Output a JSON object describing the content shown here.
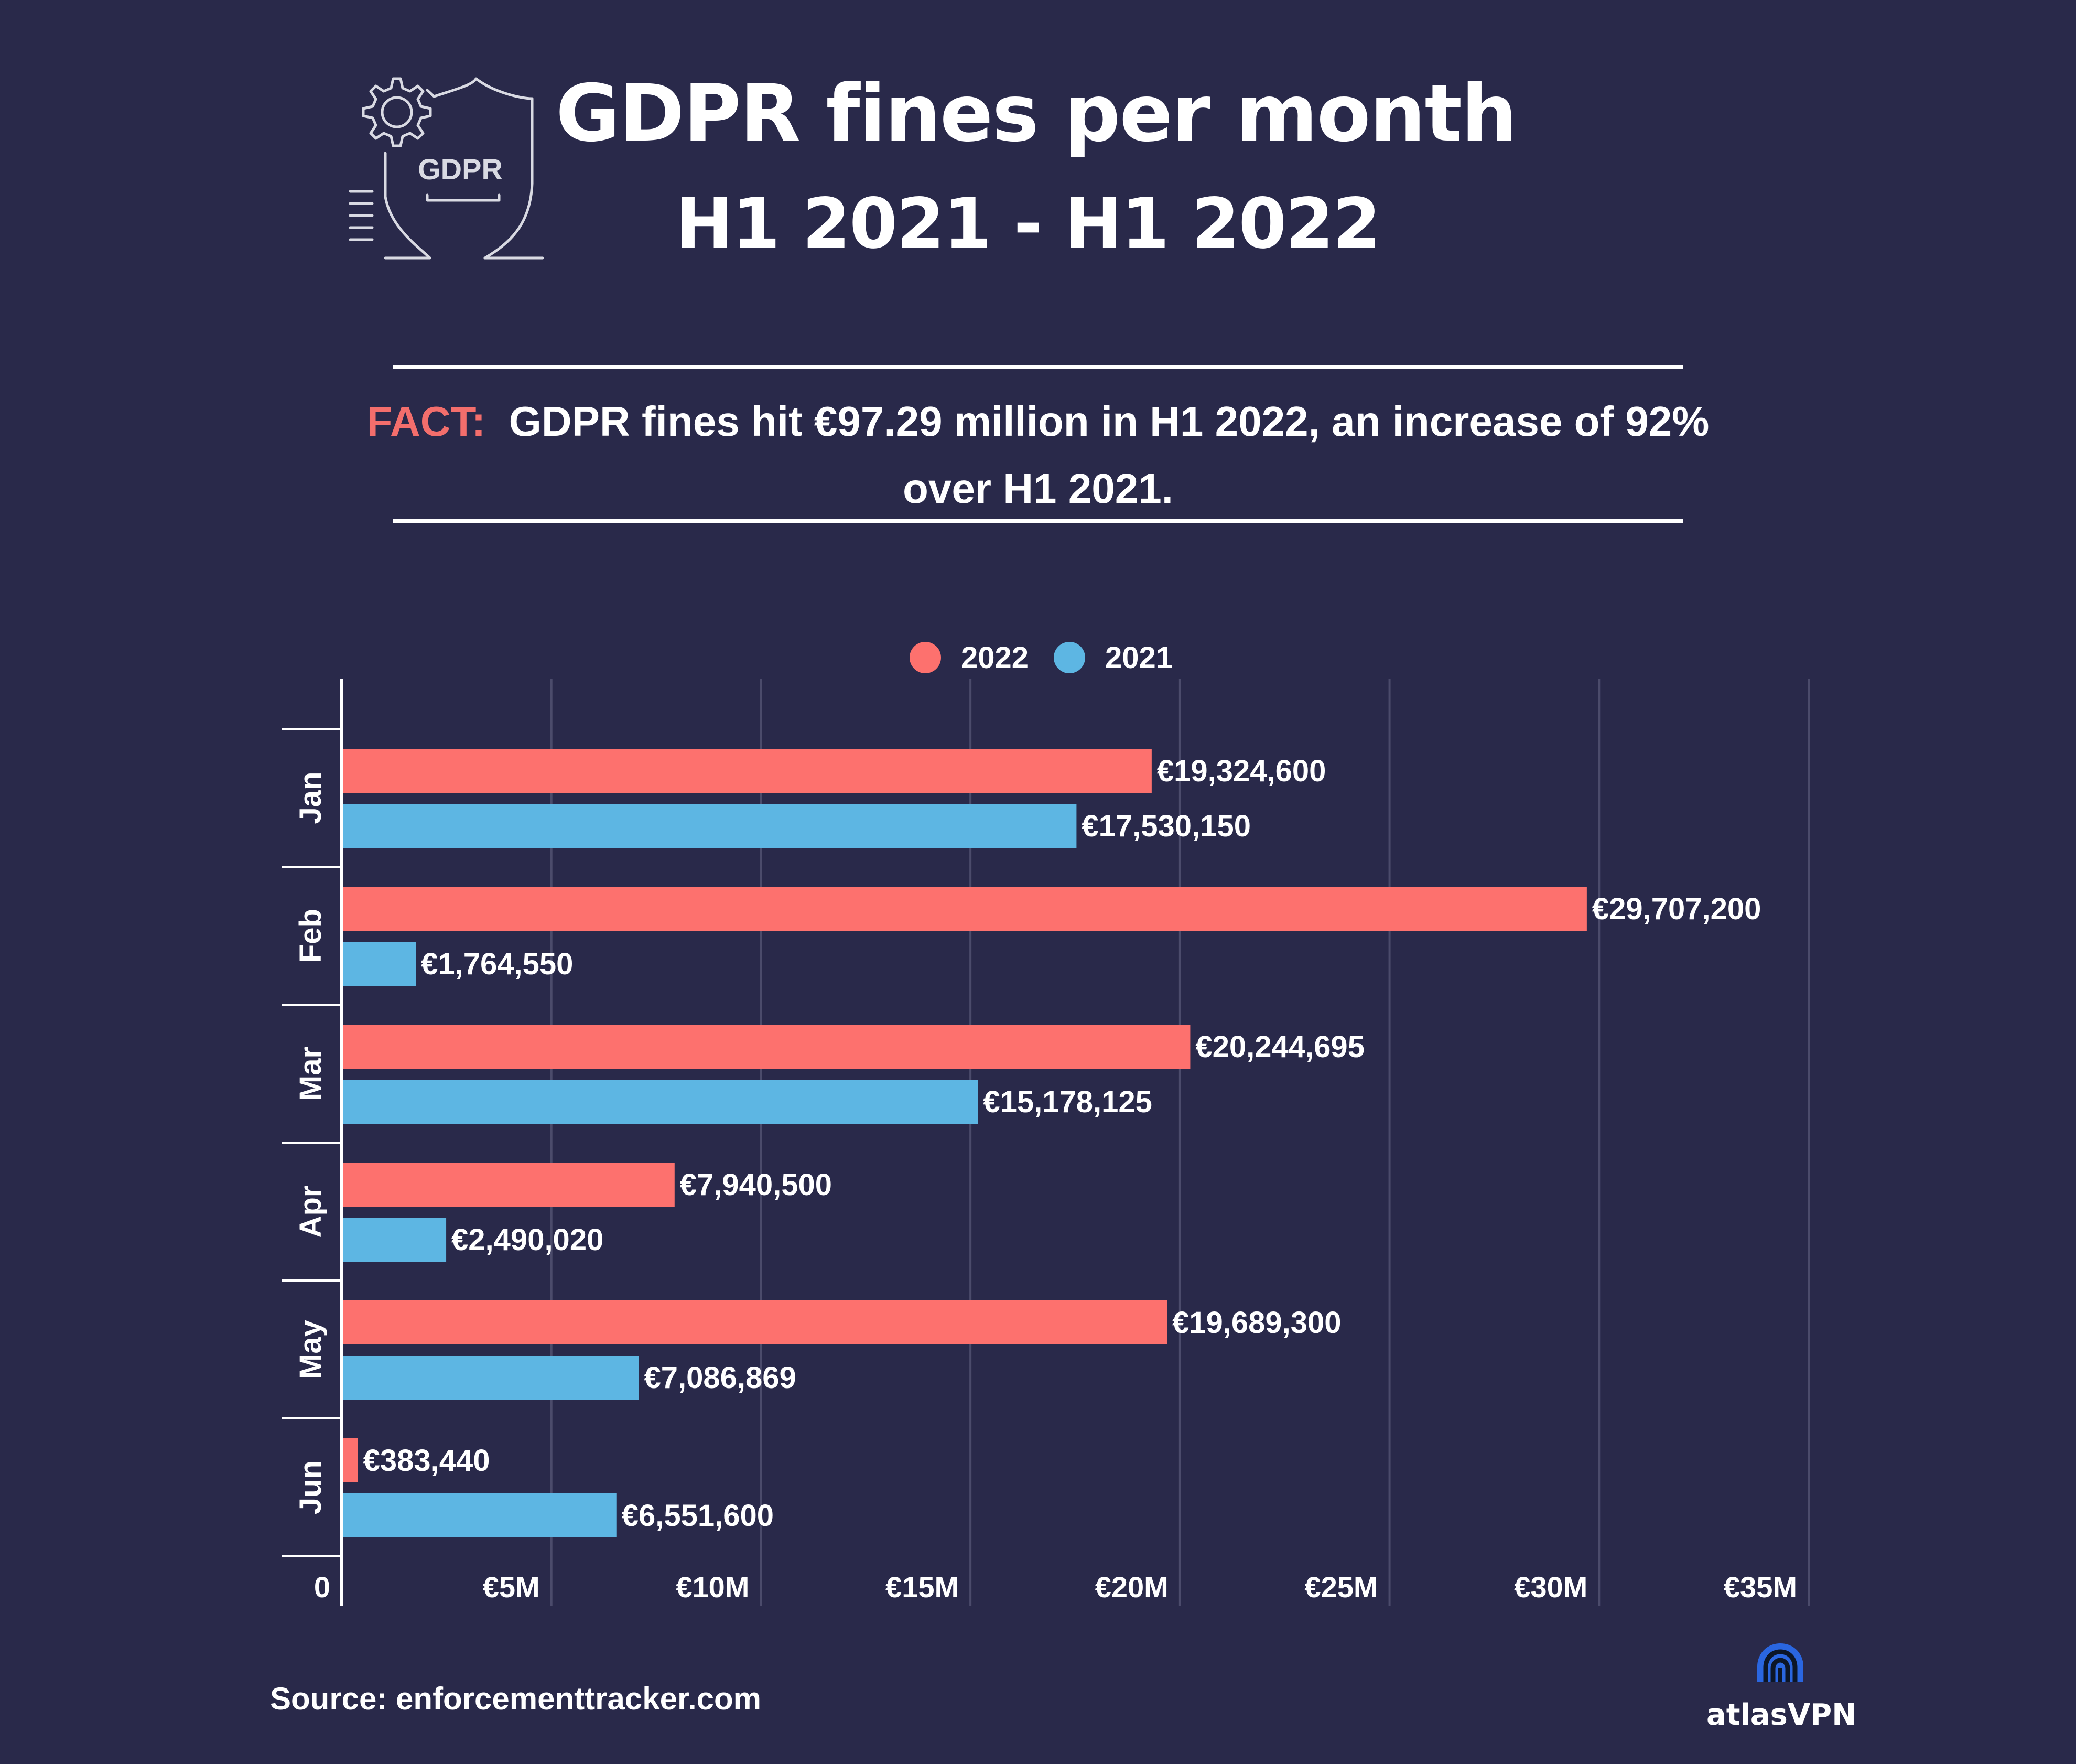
{
  "header": {
    "title": "GDPR fines per month",
    "subtitle": "H1 2021 - H1 2022",
    "icon_name": "gdpr-shield-gear-icon",
    "icon_text": "GDPR"
  },
  "fact": {
    "label": "FACT:",
    "text": "GDPR fines hit €97.29 million in H1 2022, an increase of 92% over H1 2021."
  },
  "chart_data": {
    "type": "bar",
    "orientation": "horizontal",
    "title": "GDPR fines per month",
    "categories": [
      "Jan",
      "Feb",
      "Mar",
      "Apr",
      "May",
      "Jun"
    ],
    "series": [
      {
        "name": "2022",
        "color": "#fd716e",
        "values": [
          19324600,
          29707200,
          20244695,
          7940500,
          19689300,
          383440
        ],
        "labels": [
          "€19,324,600",
          "€29,707,200",
          "€20,244,695",
          "€7,940,500",
          "€19,689,300",
          "€383,440"
        ]
      },
      {
        "name": "2021",
        "color": "#5db6e3",
        "values": [
          17530150,
          1764550,
          15178125,
          2490020,
          7086869,
          6551600
        ],
        "labels": [
          "€17,530,150",
          "€1,764,550",
          "€15,178,125",
          "€2,490,020",
          "€7,086,869",
          "€6,551,600"
        ]
      }
    ],
    "xlim": [
      0,
      35000000
    ],
    "xticks": [
      0,
      5000000,
      10000000,
      15000000,
      20000000,
      25000000,
      30000000,
      35000000
    ],
    "xtick_labels": [
      "0",
      "€5M",
      "€10M",
      "€15M",
      "€20M",
      "€25M",
      "€30M",
      "€35M"
    ],
    "xlabel": "",
    "ylabel": "",
    "legend_position": "top-center",
    "grid": true
  },
  "footer": {
    "source": "Source: enforcementtracker.com",
    "brand": "atlasVPN",
    "brand_icon": "atlasvpn-logo-icon"
  },
  "colors": {
    "background": "#29294a",
    "accent": "#f36e6c",
    "grid": "#4b4b6b",
    "text": "#ffffff"
  }
}
